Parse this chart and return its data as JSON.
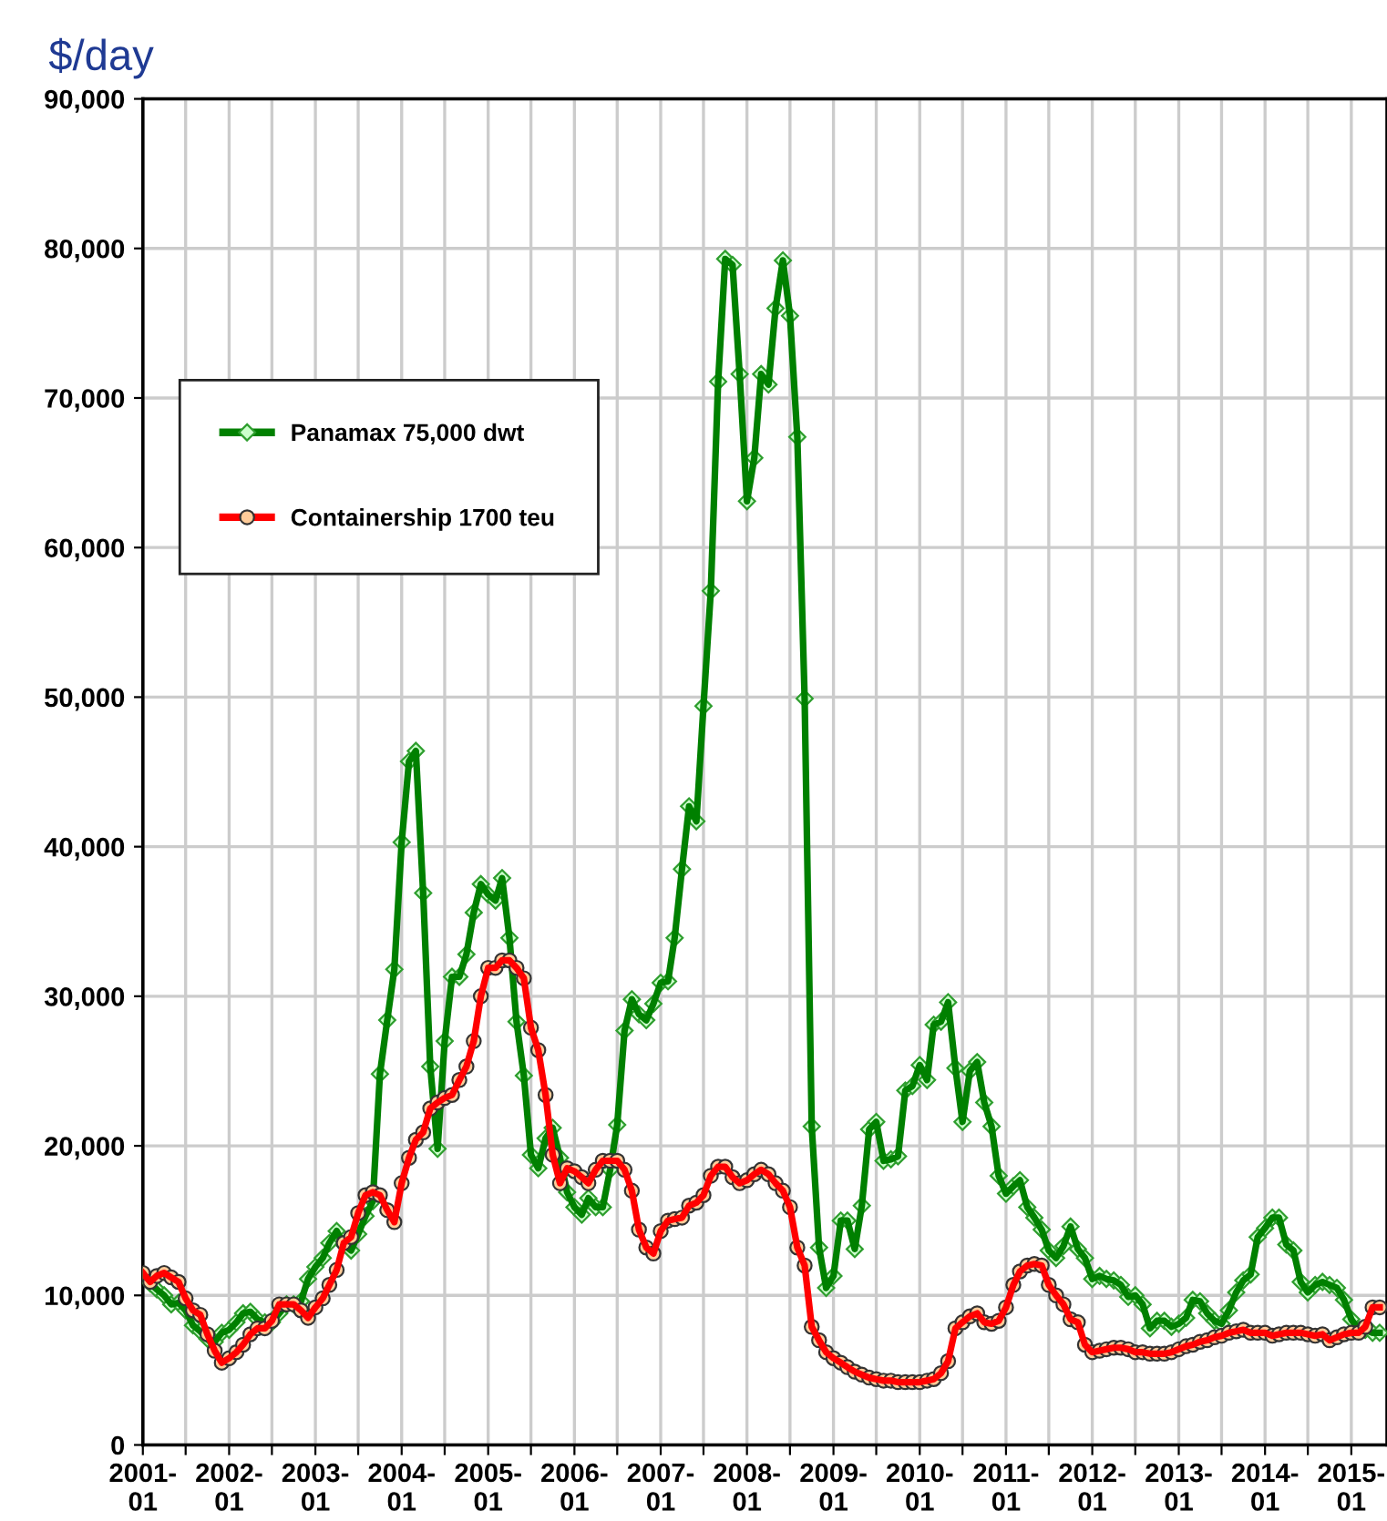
{
  "chart_data": {
    "type": "line",
    "title": "$/day",
    "x": [
      "2001-01",
      "2001-02",
      "2001-03",
      "2001-04",
      "2001-05",
      "2001-06",
      "2001-07",
      "2001-08",
      "2001-09",
      "2001-10",
      "2001-11",
      "2001-12",
      "2002-01",
      "2002-02",
      "2002-03",
      "2002-04",
      "2002-05",
      "2002-06",
      "2002-07",
      "2002-08",
      "2002-09",
      "2002-10",
      "2002-11",
      "2002-12",
      "2003-01",
      "2003-02",
      "2003-03",
      "2003-04",
      "2003-05",
      "2003-06",
      "2003-07",
      "2003-08",
      "2003-09",
      "2003-10",
      "2003-11",
      "2003-12",
      "2004-01",
      "2004-02",
      "2004-03",
      "2004-04",
      "2004-05",
      "2004-06",
      "2004-07",
      "2004-08",
      "2004-09",
      "2004-10",
      "2004-11",
      "2004-12",
      "2005-01",
      "2005-02",
      "2005-03",
      "2005-04",
      "2005-05",
      "2005-06",
      "2005-07",
      "2005-08",
      "2005-09",
      "2005-10",
      "2005-11",
      "2005-12",
      "2006-01",
      "2006-02",
      "2006-03",
      "2006-04",
      "2006-05",
      "2006-06",
      "2006-07",
      "2006-08",
      "2006-09",
      "2006-10",
      "2006-11",
      "2006-12",
      "2007-01",
      "2007-02",
      "2007-03",
      "2007-04",
      "2007-05",
      "2007-06",
      "2007-07",
      "2007-08",
      "2007-09",
      "2007-10",
      "2007-11",
      "2007-12",
      "2008-01",
      "2008-02",
      "2008-03",
      "2008-04",
      "2008-05",
      "2008-06",
      "2008-07",
      "2008-08",
      "2008-09",
      "2008-10",
      "2008-11",
      "2008-12",
      "2009-01",
      "2009-02",
      "2009-03",
      "2009-04",
      "2009-05",
      "2009-06",
      "2009-07",
      "2009-08",
      "2009-09",
      "2009-10",
      "2009-11",
      "2009-12",
      "2010-01",
      "2010-02",
      "2010-03",
      "2010-04",
      "2010-05",
      "2010-06",
      "2010-07",
      "2010-08",
      "2010-09",
      "2010-10",
      "2010-11",
      "2010-12",
      "2011-01",
      "2011-02",
      "2011-03",
      "2011-04",
      "2011-05",
      "2011-06",
      "2011-07",
      "2011-08",
      "2011-09",
      "2011-10",
      "2011-11",
      "2011-12",
      "2012-01",
      "2012-02",
      "2012-03",
      "2012-04",
      "2012-05",
      "2012-06",
      "2012-07",
      "2012-08",
      "2012-09",
      "2012-10",
      "2012-11",
      "2012-12",
      "2013-01",
      "2013-02",
      "2013-03",
      "2013-04",
      "2013-05",
      "2013-06",
      "2013-07",
      "2013-08",
      "2013-09",
      "2013-10",
      "2013-11",
      "2013-12",
      "2014-01",
      "2014-02",
      "2014-03",
      "2014-04",
      "2014-05",
      "2014-06",
      "2014-07",
      "2014-08",
      "2014-09",
      "2014-10",
      "2014-11",
      "2014-12",
      "2015-01",
      "2015-02",
      "2015-03",
      "2015-04",
      "2015-05"
    ],
    "series": [
      {
        "name": "Panamax 75,000 dwt",
        "color": "#008000",
        "marker": "diamond",
        "values": [
          11300,
          10800,
          10400,
          10000,
          9400,
          9500,
          9000,
          8000,
          7600,
          7100,
          6900,
          7500,
          7700,
          8200,
          8800,
          8900,
          8400,
          8200,
          8200,
          8800,
          9400,
          9400,
          9600,
          11100,
          11900,
          12500,
          13500,
          14300,
          13400,
          13000,
          14100,
          15300,
          16300,
          24800,
          28400,
          31800,
          40300,
          45700,
          46400,
          36900,
          25300,
          19800,
          27000,
          31300,
          31300,
          32800,
          35600,
          37500,
          36800,
          36400,
          37900,
          33900,
          28300,
          24700,
          19400,
          18500,
          20500,
          21200,
          19200,
          16900,
          15900,
          15400,
          16500,
          15900,
          15900,
          18400,
          21400,
          27700,
          29800,
          28800,
          28400,
          29500,
          30900,
          31000,
          33900,
          38500,
          42700,
          41700,
          49400,
          57100,
          71100,
          79300,
          78900,
          71600,
          63100,
          66000,
          71600,
          70900,
          76000,
          79200,
          75500,
          67400,
          49900,
          21300,
          13200,
          10500,
          11300,
          15000,
          15000,
          13100,
          16000,
          21100,
          21600,
          19000,
          19100,
          19300,
          23700,
          24000,
          25400,
          24400,
          28100,
          28300,
          29600,
          25200,
          21600,
          25000,
          25600,
          22900,
          21300,
          18000,
          16800,
          17300,
          17700,
          15900,
          15200,
          14400,
          13000,
          12500,
          13300,
          14600,
          13100,
          12500,
          11100,
          11300,
          11100,
          11000,
          10700,
          9900,
          10000,
          9400,
          7800,
          8300,
          8300,
          7900,
          8100,
          8500,
          9700,
          9600,
          8800,
          8300,
          8100,
          9000,
          10200,
          11000,
          11400,
          13900,
          14500,
          15200,
          15200,
          13400,
          13000,
          10900,
          10200,
          10700,
          10900,
          10700,
          10500,
          9700,
          8400,
          7700,
          7700,
          7500,
          7500
        ]
      },
      {
        "name": "Containership 1700 teu",
        "color": "#ff0000",
        "marker": "circle",
        "values": [
          11500,
          10900,
          11300,
          11500,
          11200,
          10900,
          9800,
          9000,
          8700,
          7400,
          6300,
          5500,
          5800,
          6200,
          6700,
          7400,
          7800,
          7800,
          8300,
          9400,
          9400,
          9400,
          9000,
          8500,
          9200,
          9800,
          10700,
          11700,
          13500,
          13900,
          15500,
          16700,
          16900,
          16700,
          15700,
          14900,
          17500,
          19200,
          20400,
          20900,
          22500,
          22900,
          23200,
          23400,
          24400,
          25300,
          27000,
          30000,
          31900,
          31900,
          32400,
          32400,
          31900,
          31200,
          27900,
          26400,
          23400,
          19400,
          17500,
          18500,
          18300,
          17900,
          17500,
          18400,
          19000,
          19000,
          19000,
          18400,
          17000,
          14400,
          13200,
          12800,
          14300,
          15000,
          15100,
          15200,
          16000,
          16200,
          16700,
          18000,
          18600,
          18600,
          17900,
          17500,
          17700,
          18100,
          18400,
          18100,
          17500,
          17000,
          15900,
          13200,
          12000,
          7900,
          7000,
          6200,
          5800,
          5500,
          5200,
          4900,
          4700,
          4500,
          4400,
          4300,
          4300,
          4200,
          4200,
          4200,
          4200,
          4300,
          4400,
          4800,
          5600,
          7800,
          8200,
          8600,
          8800,
          8200,
          8100,
          8300,
          9200,
          10700,
          11600,
          12000,
          12100,
          12000,
          10700,
          10000,
          9400,
          8400,
          8200,
          6700,
          6200,
          6300,
          6400,
          6500,
          6500,
          6400,
          6200,
          6200,
          6100,
          6100,
          6100,
          6200,
          6400,
          6600,
          6700,
          6900,
          7000,
          7200,
          7300,
          7500,
          7600,
          7700,
          7500,
          7500,
          7500,
          7300,
          7400,
          7500,
          7500,
          7500,
          7400,
          7300,
          7400,
          7000,
          7200,
          7400,
          7500,
          7500,
          7900,
          9200,
          9200
        ]
      }
    ],
    "xlim": [
      "2001-01",
      "2015-06"
    ],
    "xticks": [
      {
        "value": "2001-01",
        "label": "2001-\n01"
      },
      {
        "value": "2001-07",
        "label": null
      },
      {
        "value": "2002-01",
        "label": "2002-\n01"
      },
      {
        "value": "2002-07",
        "label": null
      },
      {
        "value": "2003-01",
        "label": "2003-\n01"
      },
      {
        "value": "2003-07",
        "label": null
      },
      {
        "value": "2004-01",
        "label": "2004-\n01"
      },
      {
        "value": "2004-07",
        "label": null
      },
      {
        "value": "2005-01",
        "label": "2005-\n01"
      },
      {
        "value": "2005-07",
        "label": null
      },
      {
        "value": "2006-01",
        "label": "2006-\n01"
      },
      {
        "value": "2006-07",
        "label": null
      },
      {
        "value": "2007-01",
        "label": "2007-\n01"
      },
      {
        "value": "2007-07",
        "label": null
      },
      {
        "value": "2008-01",
        "label": "2008-\n01"
      },
      {
        "value": "2008-07",
        "label": null
      },
      {
        "value": "2009-01",
        "label": "2009-\n01"
      },
      {
        "value": "2009-07",
        "label": null
      },
      {
        "value": "2010-01",
        "label": "2010-\n01"
      },
      {
        "value": "2010-07",
        "label": null
      },
      {
        "value": "2011-01",
        "label": "2011-\n01"
      },
      {
        "value": "2011-07",
        "label": null
      },
      {
        "value": "2012-01",
        "label": "2012-\n01"
      },
      {
        "value": "2012-07",
        "label": null
      },
      {
        "value": "2013-01",
        "label": "2013-\n01"
      },
      {
        "value": "2013-07",
        "label": null
      },
      {
        "value": "2014-01",
        "label": "2014-\n01"
      },
      {
        "value": "2014-07",
        "label": null
      },
      {
        "value": "2015-01",
        "label": "2015-\n01"
      }
    ],
    "ylim": [
      0,
      90000
    ],
    "yticks": [
      0,
      {
        "value": 10000,
        "label": "10,000"
      },
      {
        "value": 20000,
        "label": "20,000"
      },
      {
        "value": 30000,
        "label": "30,000"
      },
      {
        "value": 40000,
        "label": "40,000"
      },
      {
        "value": 50000,
        "label": "50,000"
      },
      {
        "value": 60000,
        "label": "60,000"
      },
      {
        "value": 70000,
        "label": "70,000"
      },
      {
        "value": 80000,
        "label": "80,000"
      },
      {
        "value": 90000,
        "label": "90,000"
      }
    ],
    "grid": true,
    "legend": "top left",
    "line_style": "solid"
  }
}
